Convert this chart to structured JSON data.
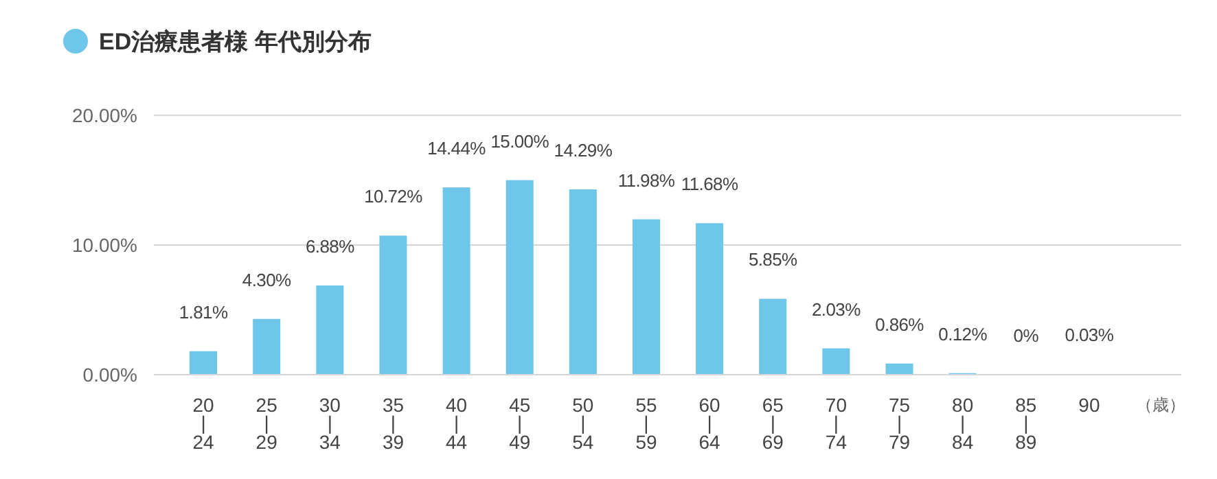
{
  "chart_data": {
    "type": "bar",
    "xlabel": "（歳）",
    "categories": [
      "20|24",
      "25|29",
      "30|34",
      "35|39",
      "40|44",
      "45|49",
      "50|54",
      "55|59",
      "60|64",
      "65|69",
      "70|74",
      "75|79",
      "80|84",
      "85|89",
      "90"
    ],
    "series": [
      {
        "name": "ED治療患者様 年代別分布",
        "color": "#6ec6e8",
        "values": [
          1.81,
          4.3,
          6.88,
          10.72,
          14.44,
          15.0,
          14.29,
          11.98,
          11.68,
          5.85,
          2.03,
          0.86,
          0.12,
          0,
          0.03
        ],
        "value_labels": [
          "1.81%",
          "4.30%",
          "6.88%",
          "10.72%",
          "14.44%",
          "15.00%",
          "14.29%",
          "11.98%",
          "11.68%",
          "5.85%",
          "2.03%",
          "0.86%",
          "0.12%",
          "0%",
          "0.03%"
        ]
      }
    ],
    "ylim": [
      0,
      20
    ],
    "yticks": [
      {
        "value": 0,
        "label": "0.00%"
      },
      {
        "value": 10,
        "label": "10.00%"
      },
      {
        "value": 20,
        "label": "20.00%"
      }
    ],
    "grid": "y",
    "legend": "top left"
  }
}
